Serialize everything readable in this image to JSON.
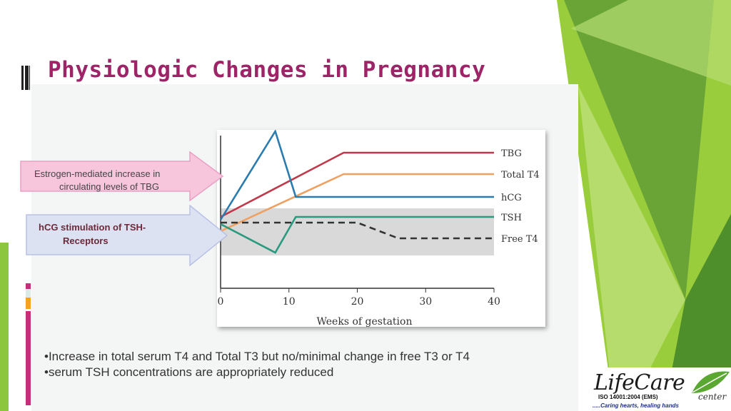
{
  "slide": {
    "title": "Physiologic Changes in Pregnancy",
    "callouts": [
      {
        "lines": [
          "Estrogen-mediated increase in",
          "circulating levels of TBG"
        ]
      },
      {
        "lines": [
          "hCG stimulation of TSH-",
          "Receptors"
        ]
      }
    ],
    "bullets": [
      "•Increase in total serum T4 and Total T3 but no/minimal change in free T3 or T4",
      "•serum TSH concentrations are appropriately reduced"
    ]
  },
  "logo": {
    "name": "LifeCare",
    "center": "center",
    "iso": "ISO 14001:2004 (EMS)",
    "tagline": ".....Caring hearts, healing hands"
  },
  "chart_data": {
    "type": "line",
    "title": "",
    "xlabel": "Weeks of gestation",
    "ylabel": "",
    "xlim": [
      0,
      40
    ],
    "ylim": [
      0,
      100
    ],
    "xticks": [
      0,
      10,
      20,
      30,
      40
    ],
    "normal_range_band": [
      23,
      56
    ],
    "series": [
      {
        "name": "TBG",
        "color": "#c0394b",
        "dashed": false,
        "x": [
          0,
          18,
          40
        ],
        "y": [
          50,
          95,
          95
        ]
      },
      {
        "name": "Total T4",
        "color": "#f0a060",
        "dashed": false,
        "x": [
          0,
          18,
          40
        ],
        "y": [
          40,
          80,
          80
        ]
      },
      {
        "name": "hCG",
        "color": "#2a7bb0",
        "dashed": false,
        "x": [
          0,
          8,
          11,
          40
        ],
        "y": [
          48,
          110,
          64,
          64
        ]
      },
      {
        "name": "TSH",
        "color": "#2a9a7e",
        "dashed": false,
        "x": [
          0,
          8,
          11,
          40
        ],
        "y": [
          45,
          25,
          50,
          50
        ]
      },
      {
        "name": "Free T4",
        "color": "#333333",
        "dashed": true,
        "x": [
          0,
          20,
          26,
          40
        ],
        "y": [
          46,
          46,
          35,
          35
        ]
      }
    ]
  },
  "colors": {
    "title": "#9c2467",
    "accent_green": "#8cc63f"
  }
}
